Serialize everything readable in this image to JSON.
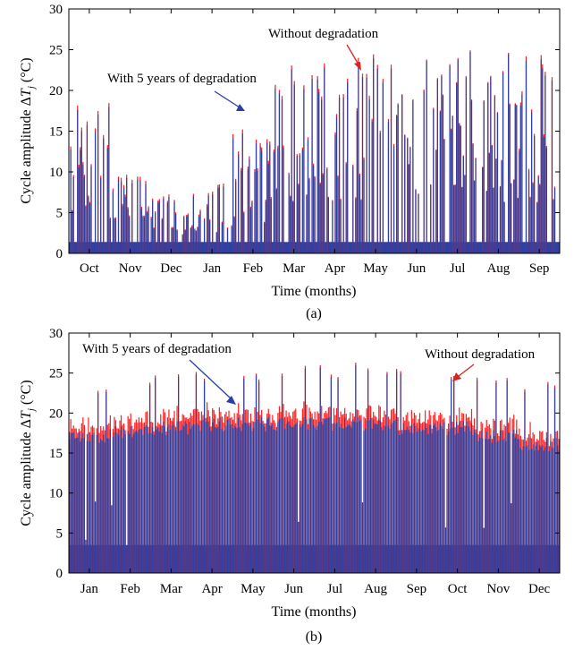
{
  "chart_data": [
    {
      "panel": "(a)",
      "type": "bar",
      "xlabel": "Time (months)",
      "ylabel": "Cycle amplitude ΔT_j (°C)",
      "ylabel_prefix": "Cycle amplitude Δ",
      "ylabel_var": "T",
      "ylabel_sub": "j",
      "ylabel_unit": " (°C)",
      "ylim": [
        0,
        30
      ],
      "yticks": [
        "0",
        "5",
        "10",
        "15",
        "20",
        "25",
        "30"
      ],
      "months": [
        "Oct",
        "Nov",
        "Dec",
        "Jan",
        "Feb",
        "Mar",
        "Apr",
        "May",
        "Jun",
        "Jul",
        "Aug",
        "Sep"
      ],
      "grid": false,
      "series": [
        {
          "name": "Without degradation",
          "color": "#ff2020",
          "monthly_peak": [
            18.5,
            11.5,
            7.5,
            9.0,
            15.5,
            23.5,
            24.5,
            24.5,
            25.0,
            25.0,
            25.2,
            24.5
          ]
        },
        {
          "name": "With 5 years of degradation",
          "color": "#3040a0",
          "monthly_peak": [
            18.0,
            11.0,
            7.2,
            8.6,
            15.0,
            23.0,
            24.0,
            24.0,
            24.8,
            24.8,
            25.0,
            24.0
          ]
        }
      ],
      "annotations": [
        {
          "text": "Without degradation",
          "arrow_color": "#e02020"
        },
        {
          "text": "With 5 years of degradation",
          "arrow_color": "#2a3fa8"
        }
      ]
    },
    {
      "panel": "(b)",
      "type": "bar",
      "xlabel": "Time (months)",
      "ylabel": "Cycle amplitude ΔT_j (°C)",
      "ylabel_prefix": "Cycle amplitude Δ",
      "ylabel_var": "T",
      "ylabel_sub": "j",
      "ylabel_unit": " (°C)",
      "ylim": [
        0,
        30
      ],
      "yticks": [
        "0",
        "5",
        "10",
        "15",
        "20",
        "25",
        "30"
      ],
      "months": [
        "Jan",
        "Feb",
        "Mar",
        "Apr",
        "May",
        "Jun",
        "Jul",
        "Aug",
        "Sep",
        "Oct",
        "Nov",
        "Dec"
      ],
      "grid": false,
      "series": [
        {
          "name": "Without degradation",
          "color": "#ff2020",
          "monthly_peak": [
            23.0,
            24.0,
            25.5,
            25.5,
            25.5,
            26.0,
            26.0,
            26.5,
            26.0,
            25.5,
            25.0,
            24.0
          ]
        },
        {
          "name": "With 5 years of degradation",
          "color": "#3040a0",
          "monthly_peak": [
            18.0,
            18.5,
            19.0,
            19.5,
            19.5,
            19.5,
            19.5,
            19.5,
            19.0,
            19.0,
            18.0,
            17.0
          ]
        }
      ],
      "annotations": [
        {
          "text": "With 5 years of degradation",
          "arrow_color": "#2a3fa8"
        },
        {
          "text": "Without degradation",
          "arrow_color": "#e02020"
        }
      ]
    }
  ]
}
